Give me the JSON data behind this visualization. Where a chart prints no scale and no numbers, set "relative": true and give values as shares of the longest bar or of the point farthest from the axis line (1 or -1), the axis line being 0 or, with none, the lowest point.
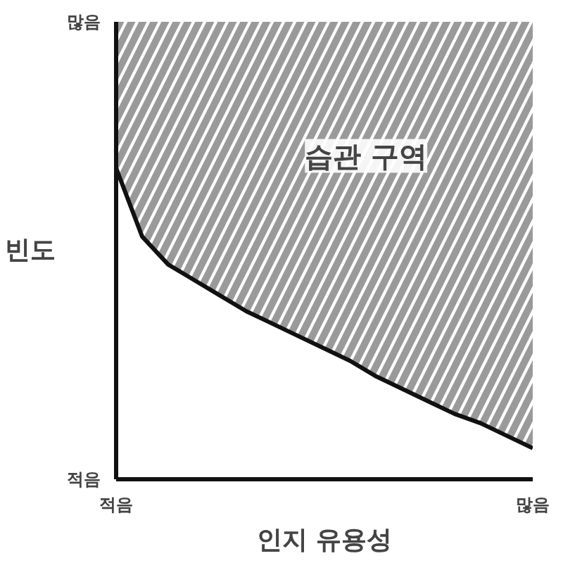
{
  "chart_data": {
    "type": "line",
    "xlabel": "인지 유용성",
    "ylabel": "빈도",
    "relative": true,
    "categories": [
      "적음",
      null,
      null,
      null,
      null,
      null,
      null,
      null,
      null,
      null,
      null,
      null,
      null,
      null,
      null,
      null,
      "많음"
    ],
    "series": [
      {
        "color": "#111111",
        "values": [
          1,
          0.78,
          0.69,
          0.64,
          0.59,
          0.54,
          0.5,
          0.46,
          0.42,
          0.38,
          0.33,
          0.29,
          0.25,
          0.21,
          0.18,
          0.14,
          0.1
        ],
        "lower": [
          1,
          0.78,
          0.69,
          0.64,
          0.59,
          0.54,
          0.5,
          0.46,
          0.42,
          0.38,
          0.33,
          0.29,
          0.25,
          0.21,
          0.18,
          0.14,
          0.1
        ],
        "upper": [
          1.47,
          1.47,
          1.47,
          1.47,
          1.47,
          1.47,
          1.47,
          1.47,
          1.47,
          1.47,
          1.47,
          1.47,
          1.47,
          1.47,
          1.47,
          1.47,
          1.47
        ]
      }
    ],
    "annotations": [
      "적음",
      "많음",
      "습관 구역"
    ],
    "line_style": "solid"
  }
}
